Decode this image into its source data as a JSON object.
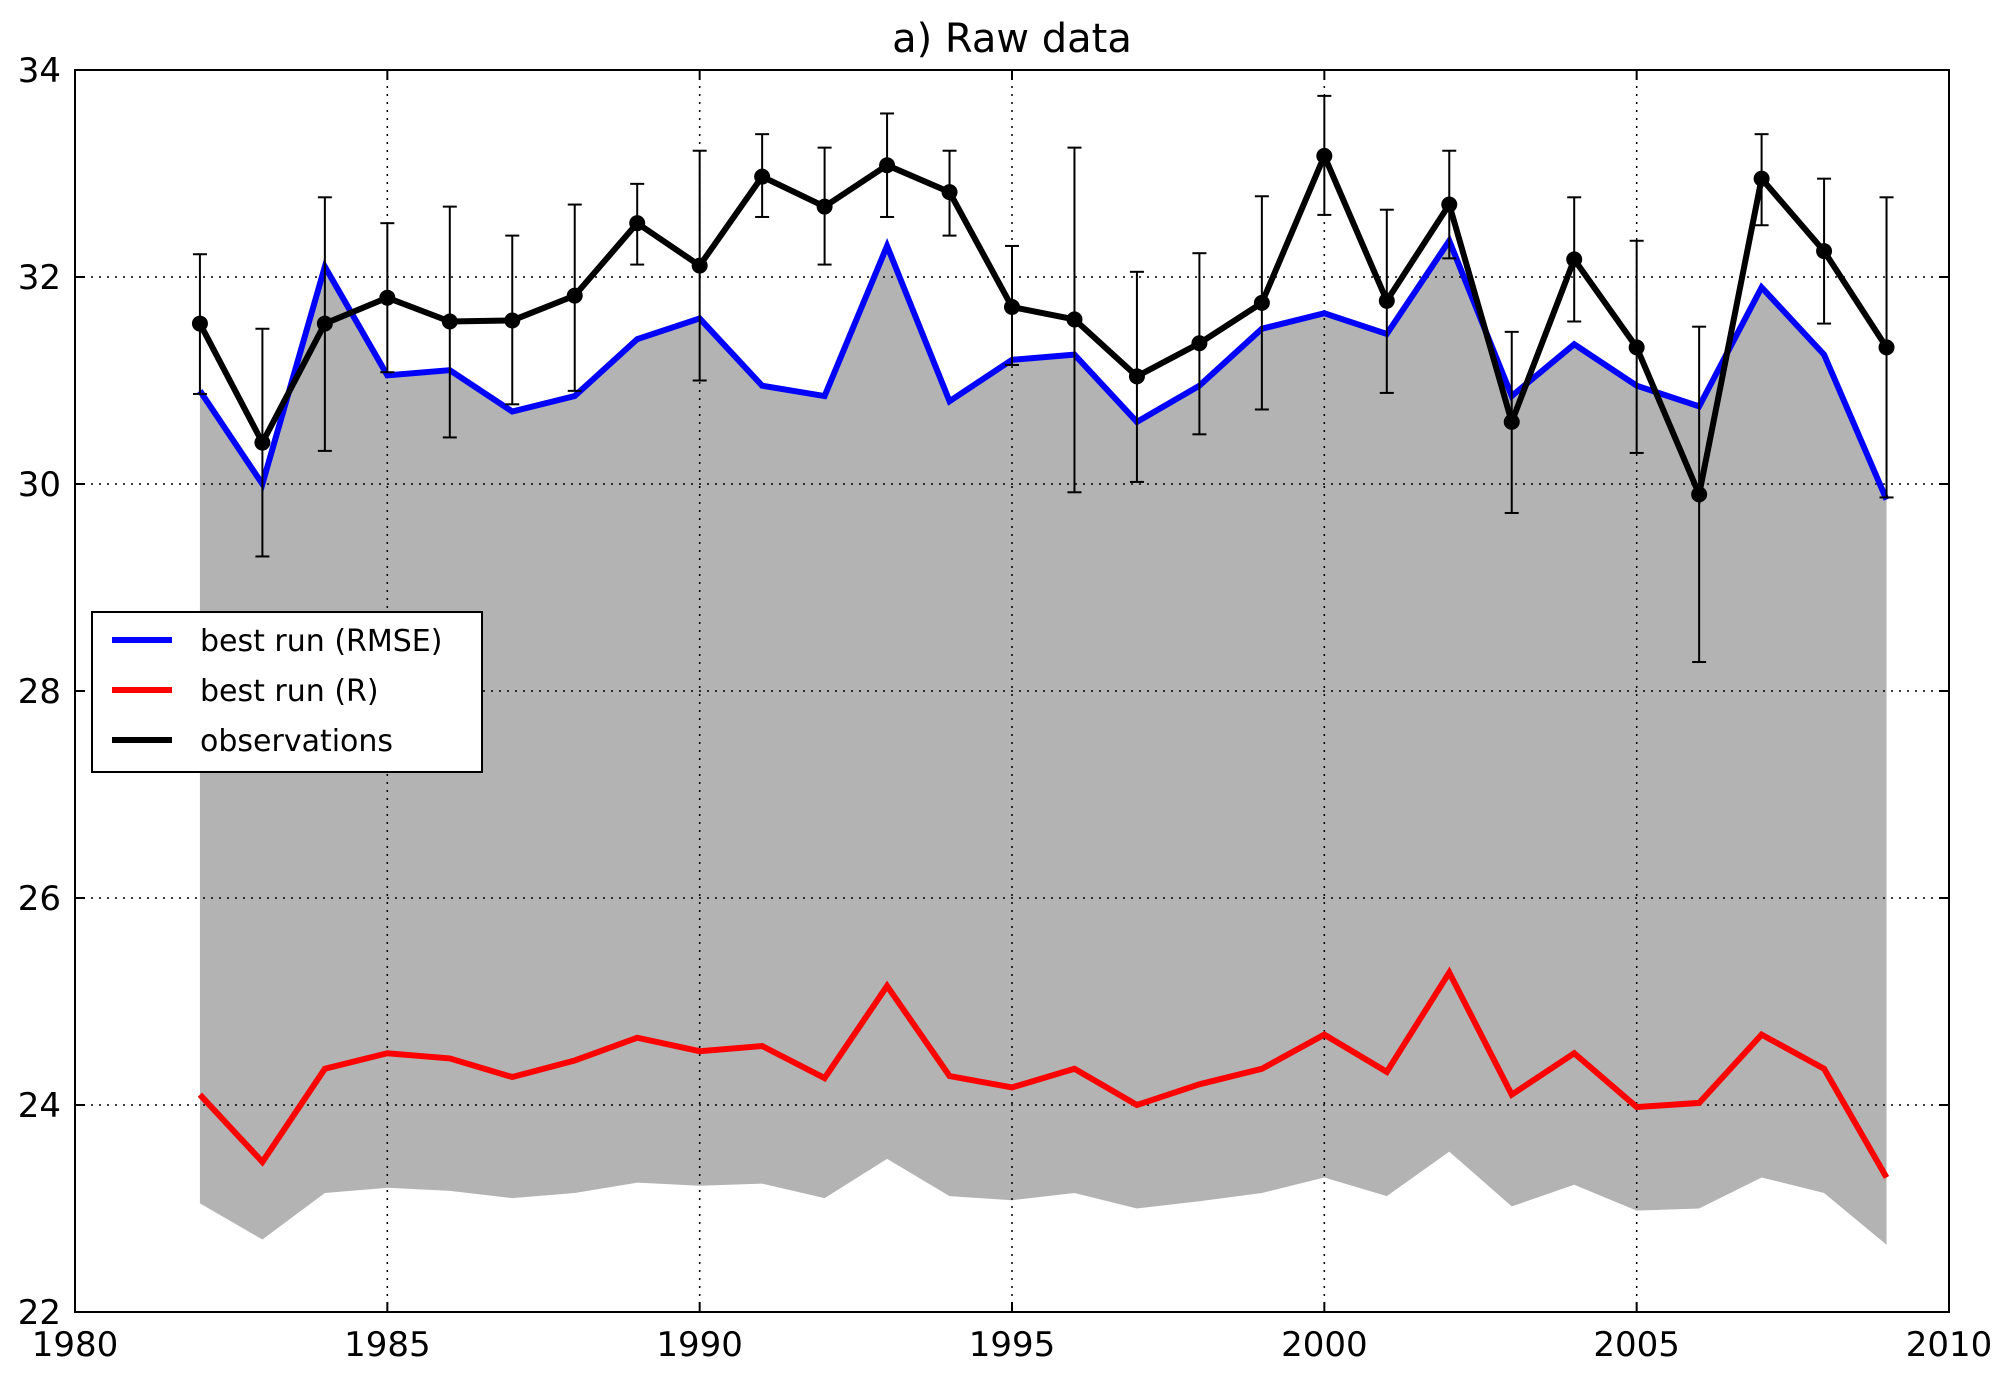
{
  "chart_data": {
    "type": "line",
    "title": "a) Raw data",
    "xlabel": "",
    "ylabel": "",
    "xlim": [
      1980,
      2010
    ],
    "ylim": [
      22,
      34
    ],
    "xticks": [
      "1980",
      "1985",
      "1990",
      "1995",
      "2000",
      "2005",
      "2010"
    ],
    "yticks": [
      "22",
      "24",
      "26",
      "28",
      "30",
      "32",
      "34"
    ],
    "grid": true,
    "legend_position": "center-left",
    "x": [
      1982,
      1983,
      1984,
      1985,
      1986,
      1987,
      1988,
      1989,
      1990,
      1991,
      1992,
      1993,
      1994,
      1995,
      1996,
      1997,
      1998,
      1999,
      2000,
      2001,
      2002,
      2003,
      2004,
      2005,
      2006,
      2007,
      2008,
      2009
    ],
    "band": {
      "color": "#b3b3b3",
      "upper": [
        30.9,
        30.0,
        32.1,
        31.05,
        31.1,
        30.7,
        30.85,
        31.4,
        31.6,
        30.95,
        30.85,
        32.3,
        30.8,
        31.2,
        31.25,
        30.6,
        30.95,
        31.5,
        31.65,
        31.45,
        32.35,
        30.85,
        31.35,
        30.95,
        30.75,
        31.9,
        31.25,
        29.85
      ],
      "lower": [
        23.05,
        22.7,
        23.15,
        23.2,
        23.17,
        23.1,
        23.15,
        23.25,
        23.22,
        23.24,
        23.1,
        23.48,
        23.12,
        23.08,
        23.15,
        23.0,
        23.07,
        23.15,
        23.3,
        23.12,
        23.55,
        23.02,
        23.23,
        22.98,
        23.0,
        23.3,
        23.15,
        22.65
      ]
    },
    "series": [
      {
        "name": "best run (RMSE)",
        "color": "#0000ff",
        "values": [
          30.9,
          30.0,
          32.1,
          31.05,
          31.1,
          30.7,
          30.85,
          31.4,
          31.6,
          30.95,
          30.85,
          32.3,
          30.8,
          31.2,
          31.25,
          30.6,
          30.95,
          31.5,
          31.65,
          31.45,
          32.35,
          30.85,
          31.35,
          30.95,
          30.75,
          31.9,
          31.25,
          29.85
        ]
      },
      {
        "name": "best run (R)",
        "color": "#ff0000",
        "values": [
          24.1,
          23.45,
          24.35,
          24.5,
          24.45,
          24.27,
          24.43,
          24.65,
          24.52,
          24.57,
          24.26,
          25.15,
          24.28,
          24.17,
          24.35,
          24.0,
          24.2,
          24.35,
          24.68,
          24.32,
          25.28,
          24.1,
          24.5,
          23.98,
          24.02,
          24.68,
          24.35,
          23.3
        ]
      },
      {
        "name": "observations",
        "color": "#000000",
        "markers": true,
        "values": [
          31.55,
          30.4,
          31.55,
          31.8,
          31.57,
          31.58,
          31.82,
          32.52,
          32.11,
          32.97,
          32.68,
          33.08,
          32.82,
          31.71,
          31.59,
          31.04,
          31.36,
          31.75,
          33.17,
          31.77,
          32.7,
          30.6,
          32.17,
          31.32,
          29.9,
          32.95,
          32.25,
          31.32
        ],
        "error_upper": [
          32.22,
          31.5,
          32.77,
          32.52,
          32.68,
          32.4,
          32.7,
          32.9,
          33.22,
          33.38,
          33.25,
          33.58,
          33.22,
          32.3,
          33.25,
          32.05,
          32.23,
          32.78,
          33.75,
          32.65,
          33.22,
          31.47,
          32.77,
          32.35,
          31.52,
          33.38,
          32.95,
          32.77
        ],
        "error_lower": [
          30.87,
          29.3,
          30.32,
          31.08,
          30.45,
          30.77,
          30.9,
          32.12,
          31.0,
          32.58,
          32.12,
          32.58,
          32.4,
          31.15,
          29.92,
          30.02,
          30.48,
          30.72,
          32.6,
          30.88,
          32.18,
          29.72,
          31.57,
          30.3,
          28.28,
          32.5,
          31.55,
          29.87
        ]
      }
    ]
  }
}
